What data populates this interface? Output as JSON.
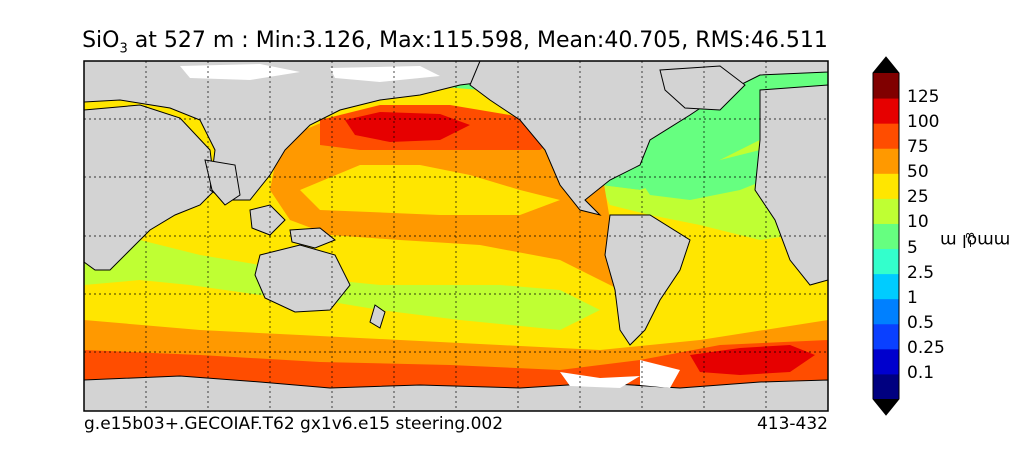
{
  "title": {
    "var_main": "SiO",
    "var_sub": "3",
    "rest": " at 527 m : Min:3.126, Max:115.598, Mean:40.705, RMS:46.511"
  },
  "footer": {
    "left": "g.e15b03+.GECOIAF.T62 gx1v6.e15 steering.002",
    "right": "413-432"
  },
  "colorbar": {
    "unit_main": "mmol m",
    "unit_sup": "−3",
    "labels": [
      "0.1",
      "0.25",
      "0.5",
      "1",
      "2.5",
      "5",
      "10",
      "25",
      "50",
      "75",
      "100",
      "125"
    ],
    "colors": [
      "#000080",
      "#0000cd",
      "#0a40ff",
      "#0080ff",
      "#00ccff",
      "#33ffcc",
      "#66ff80",
      "#bfff33",
      "#ffe600",
      "#ff9900",
      "#ff4d00",
      "#e60000",
      "#800000"
    ],
    "under_color": "#000000",
    "over_color": "#000000"
  },
  "map": {
    "land_color": "#d3d3d3",
    "ice_color": "#ffffff",
    "coast_color": "#000000"
  }
}
